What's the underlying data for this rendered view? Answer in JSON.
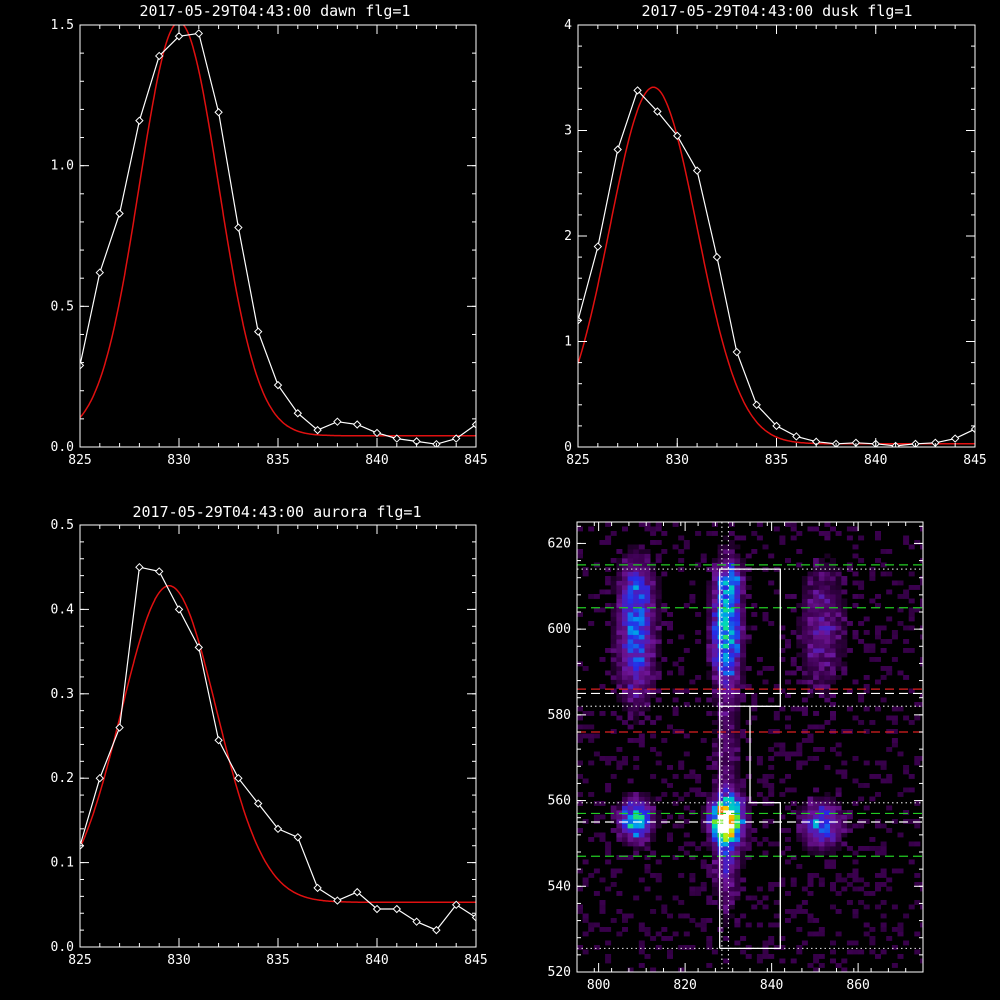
{
  "chart_data": [
    {
      "type": "line",
      "title": "2017-05-29T04:43:00 dawn flg=1",
      "xlim": [
        825,
        845
      ],
      "ylim": [
        0,
        1.5
      ],
      "xticks": [
        "825",
        "830",
        "835",
        "840",
        "845"
      ],
      "yticks": [
        "0.0",
        "0.5",
        "1.0",
        "1.5"
      ],
      "series": [
        {
          "kind": "data",
          "color": "#ffffff",
          "marker": "diamond",
          "x": [
            825,
            826,
            827,
            828,
            829,
            830,
            831,
            832,
            833,
            834,
            835,
            836,
            837,
            838,
            839,
            840,
            841,
            842,
            843,
            844,
            845
          ],
          "y": [
            0.29,
            0.62,
            0.83,
            1.16,
            1.39,
            1.46,
            1.47,
            1.19,
            0.78,
            0.41,
            0.22,
            0.12,
            0.06,
            0.09,
            0.08,
            0.05,
            0.03,
            0.02,
            0.01,
            0.03,
            0.08
          ]
        },
        {
          "kind": "fit",
          "color": "#e01010",
          "gauss": {
            "a": 1.47,
            "mu": 830.0,
            "sigma": 2.0,
            "c": 0.04
          }
        }
      ]
    },
    {
      "type": "line",
      "title": "2017-05-29T04:43:00 dusk flg=1",
      "xlim": [
        825,
        845
      ],
      "ylim": [
        0,
        4
      ],
      "xticks": [
        "825",
        "830",
        "835",
        "840",
        "845"
      ],
      "yticks": [
        "0",
        "1",
        "2",
        "3",
        "4"
      ],
      "series": [
        {
          "kind": "data",
          "color": "#ffffff",
          "marker": "diamond",
          "x": [
            825,
            826,
            827,
            828,
            829,
            830,
            831,
            832,
            833,
            834,
            835,
            836,
            837,
            838,
            839,
            840,
            841,
            842,
            843,
            844,
            845
          ],
          "y": [
            1.2,
            1.9,
            2.82,
            3.38,
            3.18,
            2.95,
            2.62,
            1.8,
            0.9,
            0.4,
            0.2,
            0.1,
            0.05,
            0.03,
            0.04,
            0.03,
            0.01,
            0.03,
            0.04,
            0.08,
            0.17
          ]
        },
        {
          "kind": "fit",
          "color": "#e01010",
          "gauss": {
            "a": 3.38,
            "mu": 828.8,
            "sigma": 2.2,
            "c": 0.03
          }
        }
      ]
    },
    {
      "type": "line",
      "title": "2017-05-29T04:43:00 aurora flg=1",
      "xlim": [
        825,
        845
      ],
      "ylim": [
        0,
        0.5
      ],
      "xticks": [
        "825",
        "830",
        "835",
        "840",
        "845"
      ],
      "yticks": [
        "0.0",
        "0.1",
        "0.2",
        "0.3",
        "0.4",
        "0.5"
      ],
      "series": [
        {
          "kind": "data",
          "color": "#ffffff",
          "marker": "diamond",
          "x": [
            825,
            826,
            827,
            828,
            829,
            830,
            831,
            832,
            833,
            834,
            835,
            836,
            837,
            838,
            839,
            840,
            841,
            842,
            843,
            844,
            845
          ],
          "y": [
            0.12,
            0.2,
            0.26,
            0.45,
            0.445,
            0.4,
            0.355,
            0.245,
            0.2,
            0.17,
            0.14,
            0.13,
            0.07,
            0.055,
            0.065,
            0.045,
            0.045,
            0.03,
            0.02,
            0.05,
            0.035
          ]
        },
        {
          "kind": "fit",
          "color": "#e01010",
          "gauss": {
            "a": 0.375,
            "mu": 829.5,
            "sigma": 2.4,
            "c": 0.053
          }
        }
      ]
    },
    {
      "type": "heatmap",
      "xlim": [
        795,
        875
      ],
      "ylim": [
        520,
        625
      ],
      "xticks": [
        "800",
        "820",
        "840",
        "860"
      ],
      "yticks": [
        "520",
        "540",
        "560",
        "580",
        "600",
        "620"
      ],
      "blobs": [
        {
          "x": 808,
          "y": 597,
          "sx": 2.8,
          "sy": 9,
          "amp": 0.38
        },
        {
          "x": 808,
          "y": 609,
          "sx": 2.5,
          "sy": 5,
          "amp": 0.2
        },
        {
          "x": 829,
          "y": 600,
          "sx": 2.2,
          "sy": 9,
          "amp": 0.55
        },
        {
          "x": 830,
          "y": 611,
          "sx": 2,
          "sy": 2.5,
          "amp": 0.2
        },
        {
          "x": 808,
          "y": 555,
          "sx": 2.4,
          "sy": 3,
          "amp": 0.6
        },
        {
          "x": 829,
          "y": 555,
          "sx": 2.4,
          "sy": 3.2,
          "amp": 1.0
        },
        {
          "x": 829,
          "y": 548,
          "sx": 2,
          "sy": 9,
          "amp": 0.25
        },
        {
          "x": 851,
          "y": 554,
          "sx": 3,
          "sy": 3.5,
          "amp": 0.4
        },
        {
          "x": 851,
          "y": 600,
          "sx": 3.5,
          "sy": 10,
          "amp": 0.18
        },
        {
          "x": 829,
          "y": 572,
          "sx": 2,
          "sy": 10,
          "amp": 0.12
        }
      ],
      "hlines": [
        {
          "y": 615,
          "color": "#22cc22",
          "style": "dash"
        },
        {
          "y": 605,
          "color": "#22cc22",
          "style": "dash"
        },
        {
          "y": 586,
          "color": "#dd2020",
          "style": "dash"
        },
        {
          "y": 585,
          "color": "#ffffff",
          "style": "dash"
        },
        {
          "y": 576,
          "color": "#dd2020",
          "style": "dash"
        },
        {
          "y": 557,
          "color": "#22cc22",
          "style": "dash"
        },
        {
          "y": 555,
          "color": "#ffffff",
          "style": "dash"
        },
        {
          "y": 547,
          "color": "#22cc22",
          "style": "dash"
        },
        {
          "y": 614,
          "color": "#cccccc",
          "style": "dot"
        },
        {
          "y": 582,
          "color": "#cccccc",
          "style": "dot"
        },
        {
          "y": 559.5,
          "color": "#cccccc",
          "style": "dot"
        },
        {
          "y": 525.5,
          "color": "#cccccc",
          "style": "dot"
        }
      ],
      "vlines": [
        {
          "x": 828.5,
          "color": "#ffffff",
          "style": "dot"
        },
        {
          "x": 830,
          "color": "#ffffff",
          "style": "dot"
        }
      ],
      "outline": [
        [
          828,
          525.5
        ],
        [
          842,
          525.5
        ],
        [
          842,
          559.5
        ],
        [
          835,
          559.5
        ],
        [
          835,
          582
        ],
        [
          842,
          582
        ],
        [
          842,
          614
        ],
        [
          828,
          614
        ],
        [
          828,
          525.5
        ]
      ],
      "outline_divider": [
        [
          828,
          582
        ],
        [
          835,
          582
        ]
      ]
    }
  ]
}
